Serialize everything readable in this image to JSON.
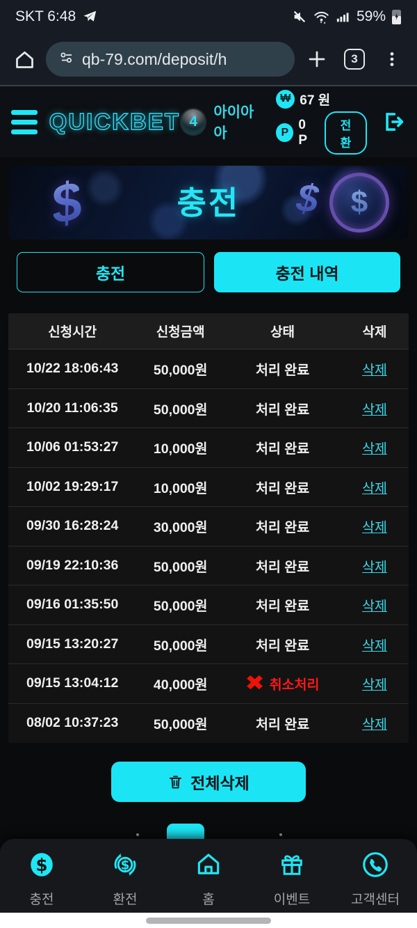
{
  "colors": {
    "accent": "#1fe6f4",
    "red": "#ff1717",
    "tab_fill": "#1be5f5"
  },
  "status_bar": {
    "carrier_time": "SKT 6:48",
    "battery": "59%"
  },
  "browser": {
    "url": "qb-79.com/deposit/h",
    "tab_count": "3"
  },
  "header": {
    "logo": "QUICKBET",
    "level": "4",
    "username": "아이아아",
    "won_symbol": "₩",
    "won_amount": "67 원",
    "point_symbol": "P",
    "point_amount": "0 P",
    "convert_label": "전환"
  },
  "banner": {
    "title": "충전",
    "dollar_sign": "$"
  },
  "tabs": [
    {
      "label": "충전",
      "active": false
    },
    {
      "label": "충전 내역",
      "active": true
    }
  ],
  "table": {
    "headers": [
      "신청시간",
      "신청금액",
      "상태",
      "삭제"
    ],
    "delete_label": "삭제",
    "rows": [
      {
        "time": "10/22 18:06:43",
        "amount": "50,000원",
        "status": "처리 완료",
        "cancelled": false
      },
      {
        "time": "10/20 11:06:35",
        "amount": "50,000원",
        "status": "처리 완료",
        "cancelled": false
      },
      {
        "time": "10/06 01:53:27",
        "amount": "10,000원",
        "status": "처리 완료",
        "cancelled": false
      },
      {
        "time": "10/02 19:29:17",
        "amount": "10,000원",
        "status": "처리 완료",
        "cancelled": false
      },
      {
        "time": "09/30 16:28:24",
        "amount": "30,000원",
        "status": "처리 완료",
        "cancelled": false
      },
      {
        "time": "09/19 22:10:36",
        "amount": "50,000원",
        "status": "처리 완료",
        "cancelled": false
      },
      {
        "time": "09/16 01:35:50",
        "amount": "50,000원",
        "status": "처리 완료",
        "cancelled": false
      },
      {
        "time": "09/15 13:20:27",
        "amount": "50,000원",
        "status": "처리 완료",
        "cancelled": false
      },
      {
        "time": "09/15 13:04:12",
        "amount": "40,000원",
        "status": "취소처리",
        "cancelled": true
      },
      {
        "time": "08/02 10:37:23",
        "amount": "50,000원",
        "status": "처리 완료",
        "cancelled": false
      }
    ]
  },
  "actions": {
    "delete_all": "전체삭제"
  },
  "bottom_nav": {
    "items": [
      {
        "label": "충전",
        "icon": "deposit-coin-icon"
      },
      {
        "label": "환전",
        "icon": "exchange-icon"
      },
      {
        "label": "홈",
        "icon": "home-icon"
      },
      {
        "label": "이벤트",
        "icon": "gift-icon"
      },
      {
        "label": "고객센터",
        "icon": "phone-icon"
      }
    ]
  }
}
